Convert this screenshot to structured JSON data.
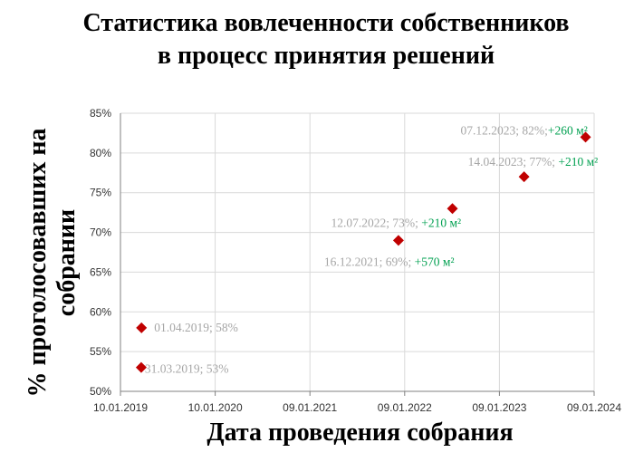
{
  "chart_data": {
    "type": "scatter",
    "title": "Статистика вовлеченности собственников в процесс принятия решений",
    "xlabel": "Дата проведения собрания",
    "ylabel": "% проголосовавших на собрании",
    "x_ticks": [
      "10.01.2019",
      "10.01.2020",
      "09.01.2021",
      "09.01.2022",
      "09.01.2023",
      "09.01.2024"
    ],
    "y_ticks": [
      "50%",
      "55%",
      "60%",
      "65%",
      "70%",
      "75%",
      "80%",
      "85%"
    ],
    "ylim": [
      50,
      85
    ],
    "xlim": [
      "2019-01-10",
      "2024-01-09"
    ],
    "grid": true,
    "marker_color": "#c00000",
    "points": [
      {
        "date": "2019-03-31",
        "value": 53,
        "label": "31.03.2019; 53%",
        "area": ""
      },
      {
        "date": "2019-04-01",
        "value": 58,
        "label": "01.04.2019; 58%",
        "area": ""
      },
      {
        "date": "2021-12-16",
        "value": 69,
        "label": "16.12.2021; 69%; ",
        "area": "+570 м²"
      },
      {
        "date": "2022-07-12",
        "value": 73,
        "label": "12.07.2022; 73%; ",
        "area": "+210 м²"
      },
      {
        "date": "2023-04-14",
        "value": 77,
        "label": "14.04.2023; 77%; ",
        "area": "+210 м²"
      },
      {
        "date": "2023-12-07",
        "value": 82,
        "label": "07.12.2023; 82%;",
        "area": "+260 м²"
      }
    ]
  }
}
